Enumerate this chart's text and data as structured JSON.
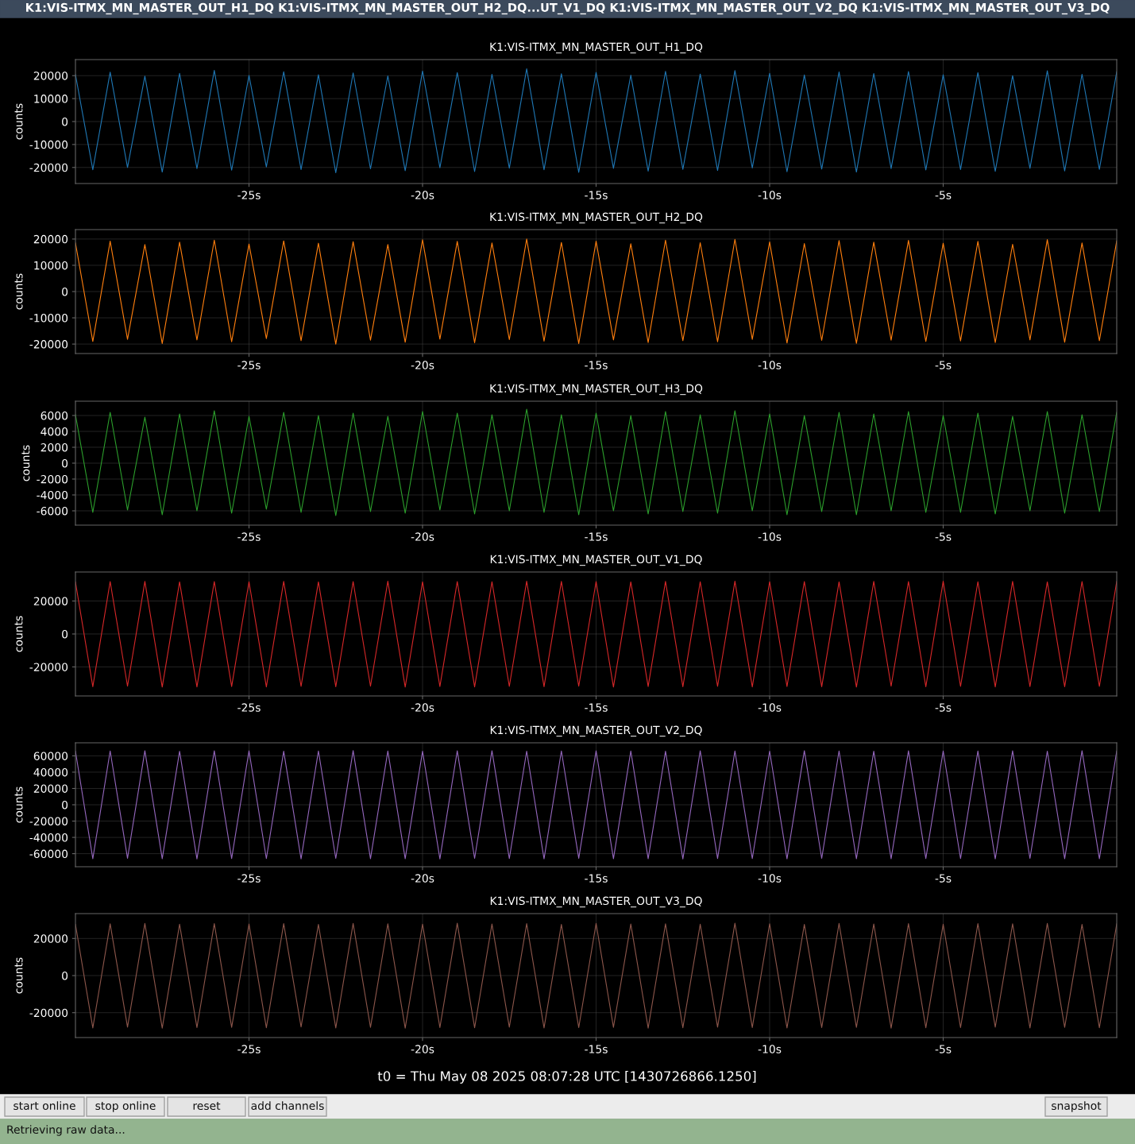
{
  "chart_data": [
    {
      "type": "line",
      "title": "K1:VIS-ITMX_MN_MASTER_OUT_H1_DQ",
      "ylabel": "counts",
      "grid": true,
      "line_style": "solid",
      "marker": "none",
      "x": [
        -30,
        -29.5,
        -29,
        -28.5,
        -28,
        -27.5,
        -27,
        -26.5,
        -26,
        -25.5,
        -25,
        -24.5,
        -24,
        -23.5,
        -23,
        -22.5,
        -22,
        -21.5,
        -21,
        -20.5,
        -20,
        -19.5,
        -19,
        -18.5,
        -18,
        -17.5,
        -17,
        -16.5,
        -16,
        -15.5,
        -15,
        -14.5,
        -14,
        -13.5,
        -13,
        -12.5,
        -12,
        -11.5,
        -11,
        -10.5,
        -10,
        -9.5,
        -9,
        -8.5,
        -8,
        -7.5,
        -7,
        -6.5,
        -6,
        -5.5,
        -5,
        -4.5,
        -4,
        -3.5,
        -3,
        -2.5,
        -2,
        -1.5,
        -1,
        -0.5,
        0
      ],
      "xlim": [
        -30,
        0
      ],
      "xticks": [
        {
          "value": -25,
          "label": "-25s"
        },
        {
          "value": -20,
          "label": "-20s"
        },
        {
          "value": -15,
          "label": "-15s"
        },
        {
          "value": -10,
          "label": "-10s"
        },
        {
          "value": -5,
          "label": "-5s"
        }
      ],
      "ylim": [
        -27000,
        27000
      ],
      "yticks": [
        -20000,
        -10000,
        0,
        10000,
        20000
      ],
      "series": [
        {
          "color": "#1f77b4",
          "values": [
            20500,
            -21000,
            21500,
            -20000,
            19800,
            -22000,
            21000,
            -20500,
            22300,
            -21200,
            20100,
            -19800,
            21700,
            -20900,
            20400,
            -22300,
            21200,
            -20600,
            19900,
            -21400,
            22000,
            -20100,
            21300,
            -21800,
            20600,
            -20300,
            23000,
            -21000,
            20800,
            -22100,
            21400,
            -20400,
            20200,
            -21600,
            21900,
            -20800,
            20700,
            -21300,
            22200,
            -20200,
            21000,
            -21900,
            20300,
            -20700,
            21600,
            -22000,
            20900,
            -20500,
            21800,
            -21100,
            20400,
            -20900,
            21300,
            -21700,
            20000,
            -20400,
            22100,
            -21500,
            20600,
            -20800,
            21700
          ]
        }
      ]
    },
    {
      "type": "line",
      "title": "K1:VIS-ITMX_MN_MASTER_OUT_H2_DQ",
      "ylabel": "counts",
      "grid": true,
      "line_style": "solid",
      "marker": "none",
      "x": [
        -30,
        -29.5,
        -29,
        -28.5,
        -28,
        -27.5,
        -27,
        -26.5,
        -26,
        -25.5,
        -25,
        -24.5,
        -24,
        -23.5,
        -23,
        -22.5,
        -22,
        -21.5,
        -21,
        -20.5,
        -20,
        -19.5,
        -19,
        -18.5,
        -18,
        -17.5,
        -17,
        -16.5,
        -16,
        -15.5,
        -15,
        -14.5,
        -14,
        -13.5,
        -13,
        -12.5,
        -12,
        -11.5,
        -11,
        -10.5,
        -10,
        -9.5,
        -9,
        -8.5,
        -8,
        -7.5,
        -7,
        -6.5,
        -6,
        -5.5,
        -5,
        -4.5,
        -4,
        -3.5,
        -3,
        -2.5,
        -2,
        -1.5,
        -1,
        -0.5,
        0
      ],
      "xlim": [
        -30,
        0
      ],
      "xticks": [
        {
          "value": -25,
          "label": "-25s"
        },
        {
          "value": -20,
          "label": "-20s"
        },
        {
          "value": -15,
          "label": "-15s"
        },
        {
          "value": -10,
          "label": "-10s"
        },
        {
          "value": -5,
          "label": "-5s"
        }
      ],
      "ylim": [
        -23600,
        23600
      ],
      "yticks": [
        -20000,
        -10000,
        0,
        10000,
        20000
      ],
      "series": [
        {
          "color": "#ff7f0e",
          "values": [
            18500,
            -19000,
            19200,
            -18200,
            17900,
            -19800,
            18800,
            -18400,
            19600,
            -19100,
            18100,
            -17900,
            19300,
            -18700,
            18400,
            -20000,
            19000,
            -18500,
            17900,
            -19300,
            19700,
            -18100,
            19100,
            -19500,
            18500,
            -18300,
            20000,
            -18900,
            18700,
            -19800,
            19200,
            -18400,
            18200,
            -19400,
            19600,
            -18700,
            18600,
            -19100,
            19900,
            -18200,
            18900,
            -19600,
            18300,
            -18600,
            19400,
            -19700,
            18800,
            -18500,
            19500,
            -19000,
            18400,
            -18800,
            19100,
            -19400,
            18000,
            -18400,
            19800,
            -19300,
            18500,
            -18700,
            19300
          ]
        }
      ]
    },
    {
      "type": "line",
      "title": "K1:VIS-ITMX_MN_MASTER_OUT_H3_DQ",
      "ylabel": "counts",
      "grid": true,
      "line_style": "solid",
      "marker": "none",
      "x": [
        -30,
        -29.5,
        -29,
        -28.5,
        -28,
        -27.5,
        -27,
        -26.5,
        -26,
        -25.5,
        -25,
        -24.5,
        -24,
        -23.5,
        -23,
        -22.5,
        -22,
        -21.5,
        -21,
        -20.5,
        -20,
        -19.5,
        -19,
        -18.5,
        -18,
        -17.5,
        -17,
        -16.5,
        -16,
        -15.5,
        -15,
        -14.5,
        -14,
        -13.5,
        -13,
        -12.5,
        -12,
        -11.5,
        -11,
        -10.5,
        -10,
        -9.5,
        -9,
        -8.5,
        -8,
        -7.5,
        -7,
        -6.5,
        -6,
        -5.5,
        -5,
        -4.5,
        -4,
        -3.5,
        -3,
        -2.5,
        -2,
        -1.5,
        -1,
        -0.5,
        0
      ],
      "xlim": [
        -30,
        0
      ],
      "xticks": [
        {
          "value": -25,
          "label": "-25s"
        },
        {
          "value": -20,
          "label": "-20s"
        },
        {
          "value": -15,
          "label": "-15s"
        },
        {
          "value": -10,
          "label": "-10s"
        },
        {
          "value": -5,
          "label": "-5s"
        }
      ],
      "ylim": [
        -7800,
        7800
      ],
      "yticks": [
        -6000,
        -4000,
        -2000,
        0,
        2000,
        4000,
        6000
      ],
      "series": [
        {
          "color": "#2ca02c",
          "values": [
            6100,
            -6200,
            6400,
            -5900,
            5800,
            -6500,
            6200,
            -6000,
            6600,
            -6300,
            5900,
            -5800,
            6400,
            -6200,
            6000,
            -6600,
            6300,
            -6100,
            5900,
            -6300,
            6500,
            -5900,
            6300,
            -6400,
            6100,
            -6000,
            6800,
            -6200,
            6100,
            -6500,
            6300,
            -6000,
            6000,
            -6400,
            6500,
            -6100,
            6100,
            -6300,
            6600,
            -6000,
            6200,
            -6500,
            6000,
            -6100,
            6400,
            -6500,
            6200,
            -6000,
            6500,
            -6200,
            6000,
            -6200,
            6300,
            -6400,
            5900,
            -6000,
            6500,
            -6300,
            6100,
            -6100,
            6400
          ]
        }
      ]
    },
    {
      "type": "line",
      "title": "K1:VIS-ITMX_MN_MASTER_OUT_V1_DQ",
      "ylabel": "counts",
      "grid": true,
      "line_style": "solid",
      "marker": "none",
      "x": [
        -30,
        -29.5,
        -29,
        -28.5,
        -28,
        -27.5,
        -27,
        -26.5,
        -26,
        -25.5,
        -25,
        -24.5,
        -24,
        -23.5,
        -23,
        -22.5,
        -22,
        -21.5,
        -21,
        -20.5,
        -20,
        -19.5,
        -19,
        -18.5,
        -18,
        -17.5,
        -17,
        -16.5,
        -16,
        -15.5,
        -15,
        -14.5,
        -14,
        -13.5,
        -13,
        -12.5,
        -12,
        -11.5,
        -11,
        -10.5,
        -10,
        -9.5,
        -9,
        -8.5,
        -8,
        -7.5,
        -7,
        -6.5,
        -6,
        -5.5,
        -5,
        -4.5,
        -4,
        -3.5,
        -3,
        -2.5,
        -2,
        -1.5,
        -1,
        -0.5,
        0
      ],
      "xlim": [
        -30,
        0
      ],
      "xticks": [
        {
          "value": -25,
          "label": "-25s"
        },
        {
          "value": -20,
          "label": "-20s"
        },
        {
          "value": -15,
          "label": "-15s"
        },
        {
          "value": -10,
          "label": "-10s"
        },
        {
          "value": -5,
          "label": "-5s"
        }
      ],
      "ylim": [
        -37600,
        37600
      ],
      "yticks": [
        -20000,
        0,
        20000
      ],
      "series": [
        {
          "color": "#d62728",
          "values": [
            31500,
            -32000,
            31800,
            -31700,
            31900,
            -32200,
            31600,
            -32100,
            31800,
            -31900,
            31700,
            -32100,
            31900,
            -31800,
            31600,
            -32000,
            31800,
            -31700,
            32000,
            -32200,
            31600,
            -31900,
            31800,
            -32100,
            31700,
            -31800,
            32000,
            -32000,
            31900,
            -31700,
            31800,
            -32200,
            31600,
            -31900,
            31900,
            -32000,
            31700,
            -31800,
            32000,
            -32100,
            31700,
            -31900,
            31800,
            -32000,
            31600,
            -32200,
            31900,
            -31700,
            31800,
            -32000,
            32000,
            -31800,
            31700,
            -32100,
            31900,
            -31900,
            31600,
            -32000,
            31800,
            -31800,
            31900
          ]
        }
      ]
    },
    {
      "type": "line",
      "title": "K1:VIS-ITMX_MN_MASTER_OUT_V2_DQ",
      "ylabel": "counts",
      "grid": true,
      "line_style": "solid",
      "marker": "none",
      "x": [
        -30,
        -29.5,
        -29,
        -28.5,
        -28,
        -27.5,
        -27,
        -26.5,
        -26,
        -25.5,
        -25,
        -24.5,
        -24,
        -23.5,
        -23,
        -22.5,
        -22,
        -21.5,
        -21,
        -20.5,
        -20,
        -19.5,
        -19,
        -18.5,
        -18,
        -17.5,
        -17,
        -16.5,
        -16,
        -15.5,
        -15,
        -14.5,
        -14,
        -13.5,
        -13,
        -12.5,
        -12,
        -11.5,
        -11,
        -10.5,
        -10,
        -9.5,
        -9,
        -8.5,
        -8,
        -7.5,
        -7,
        -6.5,
        -6,
        -5.5,
        -5,
        -4.5,
        -4,
        -3.5,
        -3,
        -2.5,
        -2,
        -1.5,
        -1,
        -0.5,
        0
      ],
      "xlim": [
        -30,
        0
      ],
      "xticks": [
        {
          "value": -25,
          "label": "-25s"
        },
        {
          "value": -20,
          "label": "-20s"
        },
        {
          "value": -15,
          "label": "-15s"
        },
        {
          "value": -10,
          "label": "-10s"
        },
        {
          "value": -5,
          "label": "-5s"
        }
      ],
      "ylim": [
        -76000,
        76000
      ],
      "yticks": [
        -60000,
        -40000,
        -20000,
        0,
        20000,
        40000,
        60000
      ],
      "series": [
        {
          "color": "#9467bd",
          "values": [
            65800,
            -66200,
            66000,
            -65700,
            66300,
            -66100,
            65600,
            -66400,
            66100,
            -65900,
            66200,
            -66000,
            65700,
            -66300,
            66000,
            -65800,
            66400,
            -66100,
            65900,
            -66200,
            65700,
            -66400,
            66100,
            -65800,
            66300,
            -66000,
            65800,
            -66300,
            66000,
            -65700,
            66100,
            -66100,
            65900,
            -66200,
            65700,
            -66400,
            66200,
            -65900,
            66000,
            -66000,
            65800,
            -66300,
            66300,
            -65800,
            66000,
            -66200,
            65700,
            -66100,
            66200,
            -65900,
            66000,
            -66000,
            65900,
            -66300,
            66100,
            -65800,
            65800,
            -66200,
            66300,
            -66100,
            66000
          ]
        }
      ]
    },
    {
      "type": "line",
      "title": "K1:VIS-ITMX_MN_MASTER_OUT_V3_DQ",
      "ylabel": "counts",
      "grid": true,
      "line_style": "solid",
      "marker": "none",
      "x": [
        -30,
        -29.5,
        -29,
        -28.5,
        -28,
        -27.5,
        -27,
        -26.5,
        -26,
        -25.5,
        -25,
        -24.5,
        -24,
        -23.5,
        -23,
        -22.5,
        -22,
        -21.5,
        -21,
        -20.5,
        -20,
        -19.5,
        -19,
        -18.5,
        -18,
        -17.5,
        -17,
        -16.5,
        -16,
        -15.5,
        -15,
        -14.5,
        -14,
        -13.5,
        -13,
        -12.5,
        -12,
        -11.5,
        -11,
        -10.5,
        -10,
        -9.5,
        -9,
        -8.5,
        -8,
        -7.5,
        -7,
        -6.5,
        -6,
        -5.5,
        -5,
        -4.5,
        -4,
        -3.5,
        -3,
        -2.5,
        -2,
        -1.5,
        -1,
        -0.5,
        0
      ],
      "xlim": [
        -30,
        0
      ],
      "xticks": [
        {
          "value": -25,
          "label": "-25s"
        },
        {
          "value": -20,
          "label": "-20s"
        },
        {
          "value": -15,
          "label": "-15s"
        },
        {
          "value": -10,
          "label": "-10s"
        },
        {
          "value": -5,
          "label": "-5s"
        }
      ],
      "ylim": [
        -33400,
        33400
      ],
      "yticks": [
        -20000,
        0,
        20000
      ],
      "series": [
        {
          "color": "#8c564b",
          "values": [
            27600,
            -28200,
            27900,
            -27800,
            28100,
            -28300,
            27700,
            -28000,
            28000,
            -27900,
            27800,
            -28100,
            28000,
            -27700,
            27600,
            -28200,
            28100,
            -27900,
            27900,
            -28300,
            27700,
            -28000,
            28200,
            -28100,
            27800,
            -27800,
            28000,
            -28200,
            27600,
            -28000,
            28100,
            -27900,
            27800,
            -28300,
            27900,
            -28100,
            27700,
            -27800,
            28200,
            -28000,
            27900,
            -28200,
            27600,
            -28000,
            28100,
            -27900,
            27800,
            -28300,
            28000,
            -28100,
            27700,
            -28000,
            28000,
            -27800,
            27900,
            -28200,
            28100,
            -27900,
            27600,
            -28100,
            27900
          ]
        }
      ]
    },
    {
      "type": "other",
      "title": "K1:VIS-ITMX_MN_MASTER_OUT_H1_DQ K1:VIS-ITMX_MN_MASTER_OUT_H2_DQ...UT_V1_DQ K1:VIS-ITMX_MN_MASTER_OUT_V2_DQ K1:VIS-ITMX_MN_MASTER_OUT_V3_DQ",
      "annotations": [
        "t0 = Thu May 08 2025 08:07:28 UTC [1430726866.1250]",
        "start online",
        "stop online",
        "reset",
        "add channels",
        "snapshot",
        "Retrieving raw data..."
      ]
    }
  ]
}
